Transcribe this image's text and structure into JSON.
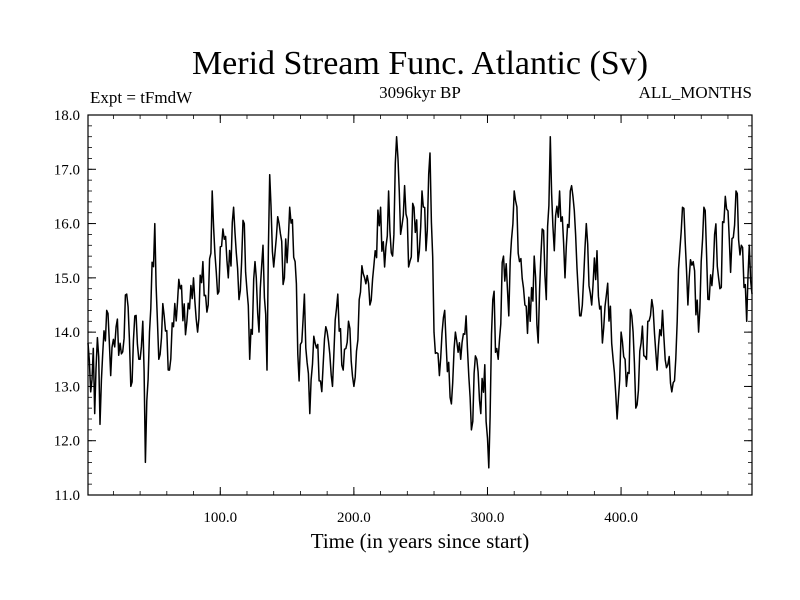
{
  "chart_data": {
    "type": "line",
    "title": "Merid Stream Func. Atlantic (Sv)",
    "subtitle_left": "Expt = tFmdW",
    "subtitle_center": "3096kyr BP",
    "subtitle_right": "ALL_MONTHS",
    "xlabel": "Time (in years since start)",
    "ylabel": "",
    "xlim": [
      1,
      498
    ],
    "ylim": [
      11.0,
      18.0
    ],
    "x_ticks": [
      100,
      200,
      300,
      400
    ],
    "x_tick_labels": [
      "100.0",
      "200.0",
      "300.0",
      "400.0"
    ],
    "y_ticks": [
      11,
      12,
      13,
      14,
      15,
      16,
      17,
      18
    ],
    "y_tick_labels": [
      "11.0",
      "12.0",
      "13.0",
      "14.0",
      "15.0",
      "16.0",
      "17.0",
      "18.0"
    ],
    "grid": false,
    "sampling_note": "annual values, x = 1..498",
    "anchors": [
      [
        1,
        13.8
      ],
      [
        3,
        12.9
      ],
      [
        5,
        13.7
      ],
      [
        6,
        12.5
      ],
      [
        8,
        13.9
      ],
      [
        10,
        12.3
      ],
      [
        12,
        13.6
      ],
      [
        15,
        14.4
      ],
      [
        18,
        13.2
      ],
      [
        22,
        14.1
      ],
      [
        26,
        13.6
      ],
      [
        30,
        14.7
      ],
      [
        33,
        13.0
      ],
      [
        36,
        14.3
      ],
      [
        40,
        13.5
      ],
      [
        42,
        14.2
      ],
      [
        44,
        11.6
      ],
      [
        47,
        14.0
      ],
      [
        51,
        16.0
      ],
      [
        54,
        13.5
      ],
      [
        58,
        14.3
      ],
      [
        62,
        13.3
      ],
      [
        65,
        14.1
      ],
      [
        70,
        14.8
      ],
      [
        75,
        14.2
      ],
      [
        80,
        15.0
      ],
      [
        83,
        14.0
      ],
      [
        87,
        15.3
      ],
      [
        91,
        14.5
      ],
      [
        94,
        16.6
      ],
      [
        98,
        14.7
      ],
      [
        102,
        15.9
      ],
      [
        106,
        15.0
      ],
      [
        110,
        16.3
      ],
      [
        114,
        14.6
      ],
      [
        118,
        16.0
      ],
      [
        122,
        13.5
      ],
      [
        126,
        15.3
      ],
      [
        129,
        14.0
      ],
      [
        132,
        15.6
      ],
      [
        135,
        13.3
      ],
      [
        137,
        16.9
      ],
      [
        140,
        15.2
      ],
      [
        144,
        16.0
      ],
      [
        148,
        15.0
      ],
      [
        152,
        16.3
      ],
      [
        156,
        15.3
      ],
      [
        159,
        13.1
      ],
      [
        163,
        14.7
      ],
      [
        167,
        12.5
      ],
      [
        171,
        13.8
      ],
      [
        175,
        13.1
      ],
      [
        179,
        14.1
      ],
      [
        184,
        13.0
      ],
      [
        188,
        14.7
      ],
      [
        192,
        13.3
      ],
      [
        196,
        14.2
      ],
      [
        200,
        13.0
      ],
      [
        204,
        14.6
      ],
      [
        208,
        15.0
      ],
      [
        212,
        14.5
      ],
      [
        216,
        15.5
      ],
      [
        220,
        16.3
      ],
      [
        223,
        15.2
      ],
      [
        226,
        16.6
      ],
      [
        229,
        15.4
      ],
      [
        232,
        17.6
      ],
      [
        235,
        15.8
      ],
      [
        238,
        16.7
      ],
      [
        241,
        15.2
      ],
      [
        245,
        16.3
      ],
      [
        248,
        15.3
      ],
      [
        251,
        16.6
      ],
      [
        254,
        15.5
      ],
      [
        257,
        17.3
      ],
      [
        260,
        14.0
      ],
      [
        264,
        13.2
      ],
      [
        268,
        14.4
      ],
      [
        272,
        12.8
      ],
      [
        276,
        14.0
      ],
      [
        280,
        13.5
      ],
      [
        284,
        14.3
      ],
      [
        288,
        12.2
      ],
      [
        292,
        13.5
      ],
      [
        295,
        12.5
      ],
      [
        298,
        13.4
      ],
      [
        301,
        11.5
      ],
      [
        304,
        14.6
      ],
      [
        308,
        13.5
      ],
      [
        312,
        15.4
      ],
      [
        316,
        14.3
      ],
      [
        320,
        16.6
      ],
      [
        324,
        15.3
      ],
      [
        328,
        14.5
      ],
      [
        332,
        14.2
      ],
      [
        335,
        15.4
      ],
      [
        338,
        13.8
      ],
      [
        341,
        15.9
      ],
      [
        344,
        14.6
      ],
      [
        347,
        17.6
      ],
      [
        350,
        15.5
      ],
      [
        354,
        16.6
      ],
      [
        358,
        15.0
      ],
      [
        362,
        16.6
      ],
      [
        366,
        15.8
      ],
      [
        370,
        14.3
      ],
      [
        374,
        16.0
      ],
      [
        378,
        14.5
      ],
      [
        382,
        15.5
      ],
      [
        386,
        13.8
      ],
      [
        390,
        14.9
      ],
      [
        394,
        13.5
      ],
      [
        397,
        12.4
      ],
      [
        400,
        14.0
      ],
      [
        404,
        13.0
      ],
      [
        408,
        14.3
      ],
      [
        411,
        12.6
      ],
      [
        415,
        13.8
      ],
      [
        419,
        13.5
      ],
      [
        423,
        14.6
      ],
      [
        427,
        13.3
      ],
      [
        431,
        14.4
      ],
      [
        435,
        13.4
      ],
      [
        438,
        12.9
      ],
      [
        442,
        14.2
      ],
      [
        446,
        16.3
      ],
      [
        450,
        14.5
      ],
      [
        454,
        15.3
      ],
      [
        458,
        14.0
      ],
      [
        462,
        16.3
      ],
      [
        466,
        14.6
      ],
      [
        470,
        15.8
      ],
      [
        474,
        14.8
      ],
      [
        478,
        16.5
      ],
      [
        482,
        15.1
      ],
      [
        486,
        16.6
      ],
      [
        490,
        15.6
      ],
      [
        494,
        14.2
      ],
      [
        496,
        15.6
      ],
      [
        498,
        14.7
      ]
    ]
  }
}
